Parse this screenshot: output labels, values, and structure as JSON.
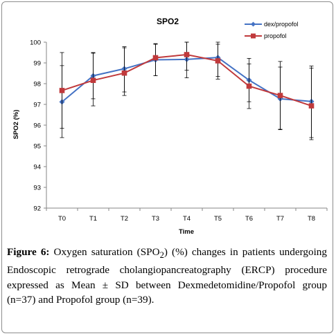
{
  "figure": {
    "label": "Figure 6:",
    "caption_pre": "Oxygen saturation (SPO",
    "caption_sub": "2",
    "caption_post": ") (%) changes in patients undergoing Endoscopic retrograde cholangiopancreatography (ERCP) procedure expressed as Mean ± SD between Dexmedetomidine/Propofol group (n=37) and Propofol group (n=39)."
  },
  "chart_data": {
    "type": "line",
    "title": "SPO2",
    "xlabel": "Time",
    "ylabel": "SPO2 (%)",
    "categories": [
      "T0",
      "T1",
      "T2",
      "T3",
      "T4",
      "T5",
      "T6",
      "T7",
      "T8"
    ],
    "ylim": [
      92,
      100
    ],
    "yticks": [
      "92",
      "93",
      "94",
      "95",
      "96",
      "97",
      "98",
      "99",
      "100"
    ],
    "legend_position": "top-right",
    "grid": false,
    "series": [
      {
        "name": "dex/propofol",
        "color": "#4472c4",
        "marker": "diamond",
        "values": [
          97.12,
          98.38,
          98.72,
          99.15,
          99.17,
          99.26,
          98.17,
          97.27,
          97.14
        ],
        "error_low": [
          95.4,
          97.27,
          97.6,
          98.38,
          98.65,
          98.22,
          97.13,
          95.78,
          95.3
        ],
        "error_high": [
          98.87,
          99.5,
          99.73,
          99.9,
          100.0,
          100.0,
          99.22,
          98.8,
          98.85
        ]
      },
      {
        "name": "propofol",
        "color": "#c0393b",
        "marker": "square",
        "values": [
          97.67,
          98.16,
          98.51,
          99.25,
          99.4,
          99.1,
          97.88,
          97.43,
          96.93
        ],
        "error_low": [
          95.85,
          96.93,
          97.43,
          98.38,
          98.28,
          98.35,
          96.8,
          95.8,
          95.4
        ],
        "error_high": [
          99.5,
          99.47,
          99.78,
          99.93,
          100.0,
          99.9,
          98.95,
          99.07,
          98.75
        ]
      }
    ]
  }
}
